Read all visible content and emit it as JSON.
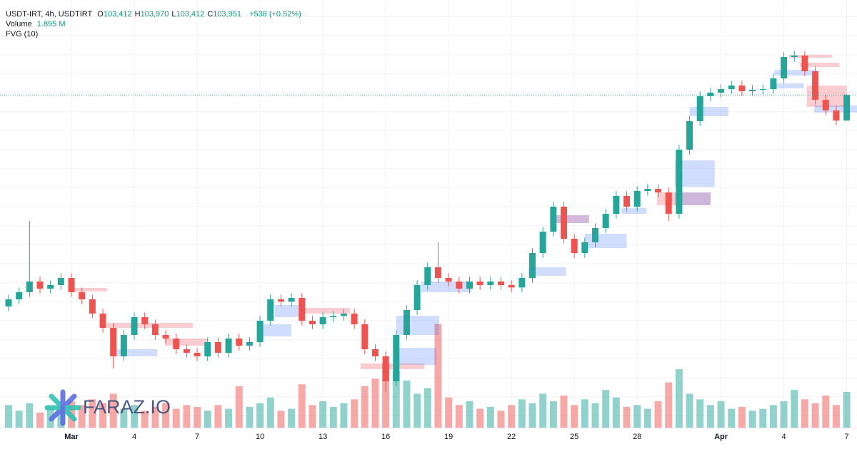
{
  "chart_data": {
    "type": "candlestick",
    "header": {
      "symbol": "USDT-IRT, 4h, USDTIRT",
      "ohlc": [
        {
          "key": "O",
          "value": "103,412"
        },
        {
          "key": "H",
          "value": "103,970"
        },
        {
          "key": "L",
          "value": "103,412"
        },
        {
          "key": "C",
          "value": "103,951"
        }
      ],
      "change": "+538 (+0.52%)",
      "volume_label": "Volume",
      "volume_value": "1.895 M"
    },
    "watermark": "FARAZ.IO",
    "up_color": "#26a69a",
    "down_color": "#ef5350",
    "ylim": [
      96950,
      105950
    ],
    "yticks": [
      97200,
      97600,
      98000,
      98400,
      98800,
      99200,
      99600,
      100000,
      100400,
      100800,
      101200,
      101600,
      102000,
      102400,
      102800,
      103200,
      103600,
      104000,
      104400,
      104800,
      105200,
      105600
    ],
    "grid": true,
    "volume_lim": [
      0,
      22.7
    ],
    "categories": [
      null,
      null,
      null,
      null,
      null,
      null,
      "Mar",
      null,
      null,
      null,
      null,
      null,
      "4",
      null,
      null,
      null,
      null,
      null,
      "7",
      null,
      null,
      null,
      null,
      null,
      "10",
      null,
      null,
      null,
      null,
      null,
      "13",
      null,
      null,
      null,
      null,
      null,
      "16",
      null,
      null,
      null,
      null,
      null,
      "19",
      null,
      null,
      null,
      null,
      null,
      "22",
      null,
      null,
      null,
      null,
      null,
      "25",
      null,
      null,
      null,
      null,
      null,
      "28",
      null,
      null,
      null,
      null,
      null,
      null,
      null,
      "Apr",
      null,
      null,
      null,
      null,
      null,
      "4",
      null,
      null,
      null,
      null,
      null,
      "7"
    ],
    "candles": [
      [
        99500,
        99750,
        99400,
        99650
      ],
      [
        99650,
        99900,
        99550,
        99800
      ],
      [
        99800,
        101300,
        99700,
        100025
      ],
      [
        100025,
        100125,
        99775,
        99875
      ],
      [
        99875,
        100050,
        99775,
        99950
      ],
      [
        99950,
        100200,
        99850,
        100100
      ],
      [
        100100,
        100200,
        99700,
        99800
      ],
      [
        99800,
        99900,
        99550,
        99650
      ],
      [
        99650,
        99750,
        99250,
        99350
      ],
      [
        99350,
        99450,
        98950,
        99050
      ],
      [
        99050,
        99150,
        98200,
        98450
      ],
      [
        98450,
        99000,
        98350,
        98900
      ],
      [
        98900,
        99375,
        98800,
        99275
      ],
      [
        99275,
        99375,
        99025,
        99125
      ],
      [
        99125,
        99225,
        98800,
        98900
      ],
      [
        98900,
        99000,
        98725,
        98825
      ],
      [
        98825,
        98925,
        98500,
        98600
      ],
      [
        98600,
        98700,
        98425,
        98525
      ],
      [
        98525,
        98625,
        98350,
        98450
      ],
      [
        98450,
        98850,
        98350,
        98750
      ],
      [
        98750,
        98850,
        98425,
        98525
      ],
      [
        98525,
        98925,
        98425,
        98825
      ],
      [
        98825,
        98925,
        98575,
        98675
      ],
      [
        98675,
        98850,
        98575,
        98750
      ],
      [
        98750,
        99300,
        98650,
        99200
      ],
      [
        99200,
        99750,
        99100,
        99650
      ],
      [
        99650,
        99750,
        99500,
        99600
      ],
      [
        99600,
        99780,
        99500,
        99680
      ],
      [
        99680,
        99780,
        99100,
        99200
      ],
      [
        99200,
        99300,
        99025,
        99125
      ],
      [
        99125,
        99375,
        99025,
        99275
      ],
      [
        99275,
        99400,
        99175,
        99300
      ],
      [
        99300,
        99450,
        99200,
        99350
      ],
      [
        99350,
        99450,
        99025,
        99125
      ],
      [
        99125,
        99225,
        98500,
        98600
      ],
      [
        98600,
        98700,
        98350,
        98450
      ],
      [
        98450,
        98550,
        97700,
        97925
      ],
      [
        97925,
        99000,
        97825,
        98900
      ],
      [
        98900,
        99525,
        98800,
        99425
      ],
      [
        99425,
        100050,
        99325,
        99950
      ],
      [
        99950,
        100425,
        99850,
        100325
      ],
      [
        100325,
        100850,
        100000,
        100100
      ],
      [
        100100,
        100200,
        99925,
        100025
      ],
      [
        100025,
        100125,
        99775,
        99875
      ],
      [
        99875,
        100125,
        99775,
        100025
      ],
      [
        100025,
        100125,
        99850,
        99950
      ],
      [
        99950,
        100125,
        99850,
        100025
      ],
      [
        100025,
        100125,
        99850,
        99950
      ],
      [
        99950,
        100050,
        99800,
        99900
      ],
      [
        99900,
        100200,
        99800,
        100100
      ],
      [
        100100,
        100725,
        100000,
        100625
      ],
      [
        100625,
        101175,
        100525,
        101075
      ],
      [
        101075,
        101700,
        100975,
        101600
      ],
      [
        101600,
        101700,
        100825,
        100925
      ],
      [
        100925,
        101025,
        100525,
        100625
      ],
      [
        100625,
        100950,
        100525,
        100850
      ],
      [
        100850,
        101250,
        100750,
        101150
      ],
      [
        101150,
        101550,
        101050,
        101450
      ],
      [
        101450,
        101925,
        101350,
        101825
      ],
      [
        101825,
        101925,
        101500,
        101600
      ],
      [
        101600,
        102030,
        101500,
        101930
      ],
      [
        101930,
        102075,
        101830,
        101975
      ],
      [
        101975,
        102075,
        101800,
        101900
      ],
      [
        101900,
        102000,
        101300,
        101450
      ],
      [
        101450,
        102900,
        101350,
        102800
      ],
      [
        102800,
        103500,
        102700,
        103400
      ],
      [
        103400,
        104025,
        103300,
        103925
      ],
      [
        103925,
        104100,
        103825,
        104000
      ],
      [
        104000,
        104175,
        103900,
        104075
      ],
      [
        104075,
        104250,
        103975,
        104150
      ],
      [
        104150,
        104250,
        103930,
        104030
      ],
      [
        104030,
        104160,
        103930,
        104060
      ],
      [
        104060,
        104175,
        103960,
        104075
      ],
      [
        104075,
        104400,
        103975,
        104300
      ],
      [
        104300,
        104850,
        104200,
        104750
      ],
      [
        104750,
        104880,
        104650,
        104780
      ],
      [
        104780,
        104880,
        104350,
        104450
      ],
      [
        104450,
        104550,
        103750,
        103850
      ],
      [
        103850,
        103950,
        103525,
        103625
      ],
      [
        103625,
        103725,
        103312,
        103412
      ],
      [
        103412,
        103970,
        103412,
        103951
      ]
    ],
    "volumes": [
      1.2,
      0.9,
      1.3,
      0.8,
      1.0,
      1.1,
      1.4,
      1.2,
      1.5,
      1.3,
      1.8,
      1.0,
      1.2,
      0.9,
      1.1,
      1.3,
      1.0,
      1.2,
      1.1,
      0.9,
      1.2,
      1.0,
      2.2,
      1.1,
      1.3,
      1.6,
      0.9,
      1.0,
      2.3,
      1.2,
      1.4,
      1.1,
      1.3,
      1.5,
      2.2,
      2.6,
      3.4,
      3.0,
      2.5,
      1.8,
      2.1,
      5.5,
      1.6,
      1.2,
      1.4,
      1.0,
      1.1,
      0.9,
      1.2,
      1.5,
      1.3,
      1.8,
      1.4,
      1.7,
      1.2,
      1.5,
      1.3,
      2.0,
      1.6,
      1.1,
      1.2,
      1.0,
      1.4,
      2.4,
      3.1,
      1.8,
      1.5,
      1.2,
      1.4,
      1.0,
      1.1,
      0.9,
      1.0,
      1.2,
      1.4,
      2.0,
      1.5,
      1.3,
      1.7,
      1.2,
      1.895
    ],
    "fvg": {
      "label": "FVG (10)",
      "zones": [
        {
          "x0": 5.7,
          "x1": 9.4,
          "top": 99890,
          "bottom": 99815,
          "color": "rgba(242,54,69,0.25)"
        },
        {
          "x0": 9.4,
          "x1": 17.6,
          "top": 99155,
          "bottom": 99050,
          "color": "rgba(242,54,69,0.25)"
        },
        {
          "x0": 10,
          "x1": 14.2,
          "top": 98600,
          "bottom": 98450,
          "color": "rgba(41,98,255,0.22)"
        },
        {
          "x0": 14.9,
          "x1": 19,
          "top": 98825,
          "bottom": 98675,
          "color": "rgba(242,54,69,0.25)"
        },
        {
          "x0": 23.7,
          "x1": 27,
          "top": 99125,
          "bottom": 98870,
          "color": "rgba(41,98,255,0.22)"
        },
        {
          "x0": 25.4,
          "x1": 28.1,
          "top": 99530,
          "bottom": 99275,
          "color": "rgba(41,98,255,0.22)"
        },
        {
          "x0": 28.1,
          "x1": 32.6,
          "top": 99470,
          "bottom": 99350,
          "color": "rgba(242,54,69,0.25)"
        },
        {
          "x0": 33.6,
          "x1": 39.7,
          "top": 98300,
          "bottom": 98180,
          "color": "rgba(242,54,69,0.25)"
        },
        {
          "x0": 37,
          "x1": 41.1,
          "top": 99305,
          "bottom": 98900,
          "color": "rgba(41,98,255,0.22)"
        },
        {
          "x0": 37,
          "x1": 40.8,
          "top": 98630,
          "bottom": 98270,
          "color": "rgba(41,98,255,0.22)"
        },
        {
          "x0": 39.4,
          "x1": 44.2,
          "top": 100025,
          "bottom": 99800,
          "color": "rgba(41,98,255,0.22)"
        },
        {
          "x0": 49.6,
          "x1": 53.2,
          "top": 100325,
          "bottom": 100145,
          "color": "rgba(41,98,255,0.22)"
        },
        {
          "x0": 52.2,
          "x1": 55.4,
          "top": 101420,
          "bottom": 101255,
          "color": "rgba(150,80,170,0.4)"
        },
        {
          "x0": 55,
          "x1": 59,
          "top": 101030,
          "bottom": 100730,
          "color": "rgba(41,98,255,0.22)"
        },
        {
          "x0": 58.5,
          "x1": 60.9,
          "top": 101570,
          "bottom": 101450,
          "color": "rgba(41,98,255,0.22)"
        },
        {
          "x0": 63.6,
          "x1": 67.4,
          "top": 102575,
          "bottom": 102020,
          "color": "rgba(41,98,255,0.22)"
        },
        {
          "x0": 61.9,
          "x1": 67,
          "top": 101900,
          "bottom": 101630,
          "color": "rgba(242,54,69,0.25)"
        },
        {
          "x0": 63.6,
          "x1": 67,
          "top": 101900,
          "bottom": 101630,
          "color": "rgba(41,98,255,0.22)"
        },
        {
          "x0": 65,
          "x1": 68.7,
          "top": 103700,
          "bottom": 103505,
          "color": "rgba(41,98,255,0.22)"
        },
        {
          "x0": 73.1,
          "x1": 77.2,
          "top": 104480,
          "bottom": 104360,
          "color": "rgba(41,98,255,0.22)"
        },
        {
          "x0": 73.1,
          "x1": 75.9,
          "top": 104195,
          "bottom": 104090,
          "color": "rgba(41,98,255,0.22)"
        },
        {
          "x0": 74.5,
          "x1": 78.6,
          "top": 104795,
          "bottom": 104735,
          "color": "rgba(242,54,69,0.25)"
        },
        {
          "x0": 75.5,
          "x1": 79.3,
          "top": 104630,
          "bottom": 104540,
          "color": "rgba(242,54,69,0.25)"
        },
        {
          "x0": 76.2,
          "x1": 80,
          "top": 104150,
          "bottom": 103700,
          "color": "rgba(242,54,69,0.25)"
        },
        {
          "x0": 76.9,
          "x1": 81,
          "top": 103730,
          "bottom": 103580,
          "color": "rgba(41,98,255,0.22)"
        }
      ]
    }
  }
}
